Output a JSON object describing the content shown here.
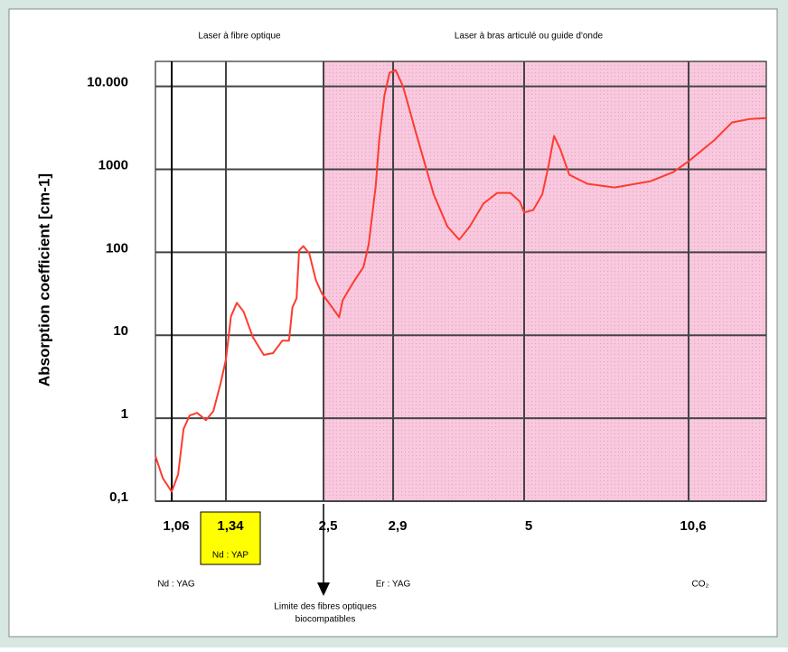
{
  "chart_data": {
    "type": "line",
    "y_label": "Absorption coefficient [cm-1]",
    "log_y": true,
    "grid": true,
    "ylim": [
      0.1,
      20000
    ],
    "yticks": [
      {
        "value": 0.1,
        "label": "0,1"
      },
      1,
      10,
      100,
      1000,
      {
        "value": 10000,
        "label": "10.000"
      }
    ],
    "xlim": [
      0.98,
      13.2
    ],
    "xticks": [
      {
        "value": 1.06,
        "label": "1,06"
      },
      {
        "value": 1.34,
        "label": "1,34",
        "note": "Nd : YAP",
        "highlight": "#ffff00"
      },
      {
        "value": 2.5,
        "label": "2,5"
      },
      {
        "value": 2.9,
        "label": "2,9"
      },
      5,
      {
        "value": 10.6,
        "label": "10,6"
      }
    ],
    "shaded_region": {
      "from": 2.5,
      "color": "#f9c8de"
    },
    "region_labels": [
      "Laser à fibre optique",
      "Laser à bras articulé ou guide d'onde"
    ],
    "laser_labels": [
      "Nd : YAG",
      "Er : YAG",
      "CO₂"
    ],
    "limit_label": [
      "Limite des fibres optiques",
      "biocompatibles"
    ],
    "series": [
      {
        "color": "#ff3b2f",
        "x": [
          0.98,
          1.016,
          1.06,
          1.093,
          1.121,
          1.153,
          1.191,
          1.237,
          1.275,
          1.312,
          1.34,
          1.4,
          1.47,
          1.55,
          1.66,
          1.79,
          1.9,
          2.01,
          2.09,
          2.13,
          2.18,
          2.21,
          2.26,
          2.33,
          2.41,
          2.48,
          2.55,
          2.59,
          2.61,
          2.67,
          2.73,
          2.76,
          2.8,
          2.82,
          2.85,
          2.88,
          2.94,
          3.06,
          3.26,
          3.55,
          3.77,
          3.96,
          4.13,
          4.35,
          4.57,
          4.78,
          4.93,
          5,
          5.31,
          5.62,
          5.83,
          6.02,
          6.23,
          6.54,
          7.15,
          8.08,
          9.31,
          10.08,
          10.6,
          11.45,
          12.05,
          12.66,
          13.2
        ],
        "values": [
          0.35,
          0.19,
          0.13,
          0.21,
          0.74,
          1.08,
          1.16,
          0.95,
          1.22,
          2.6,
          5.1,
          16.9,
          24.6,
          19.2,
          9.5,
          5.8,
          6.1,
          8.6,
          8.6,
          21.7,
          28,
          105,
          119,
          97,
          46,
          32,
          21.7,
          16.5,
          26.5,
          43,
          67,
          125,
          635,
          2230,
          7800,
          14600,
          15700,
          10000,
          2850,
          500,
          205,
          142,
          205,
          388,
          520,
          520,
          410,
          302,
          324,
          500,
          1100,
          2530,
          1750,
          860,
          670,
          605,
          720,
          925,
          1250,
          2230,
          3670,
          4050,
          4150
        ]
      }
    ]
  }
}
